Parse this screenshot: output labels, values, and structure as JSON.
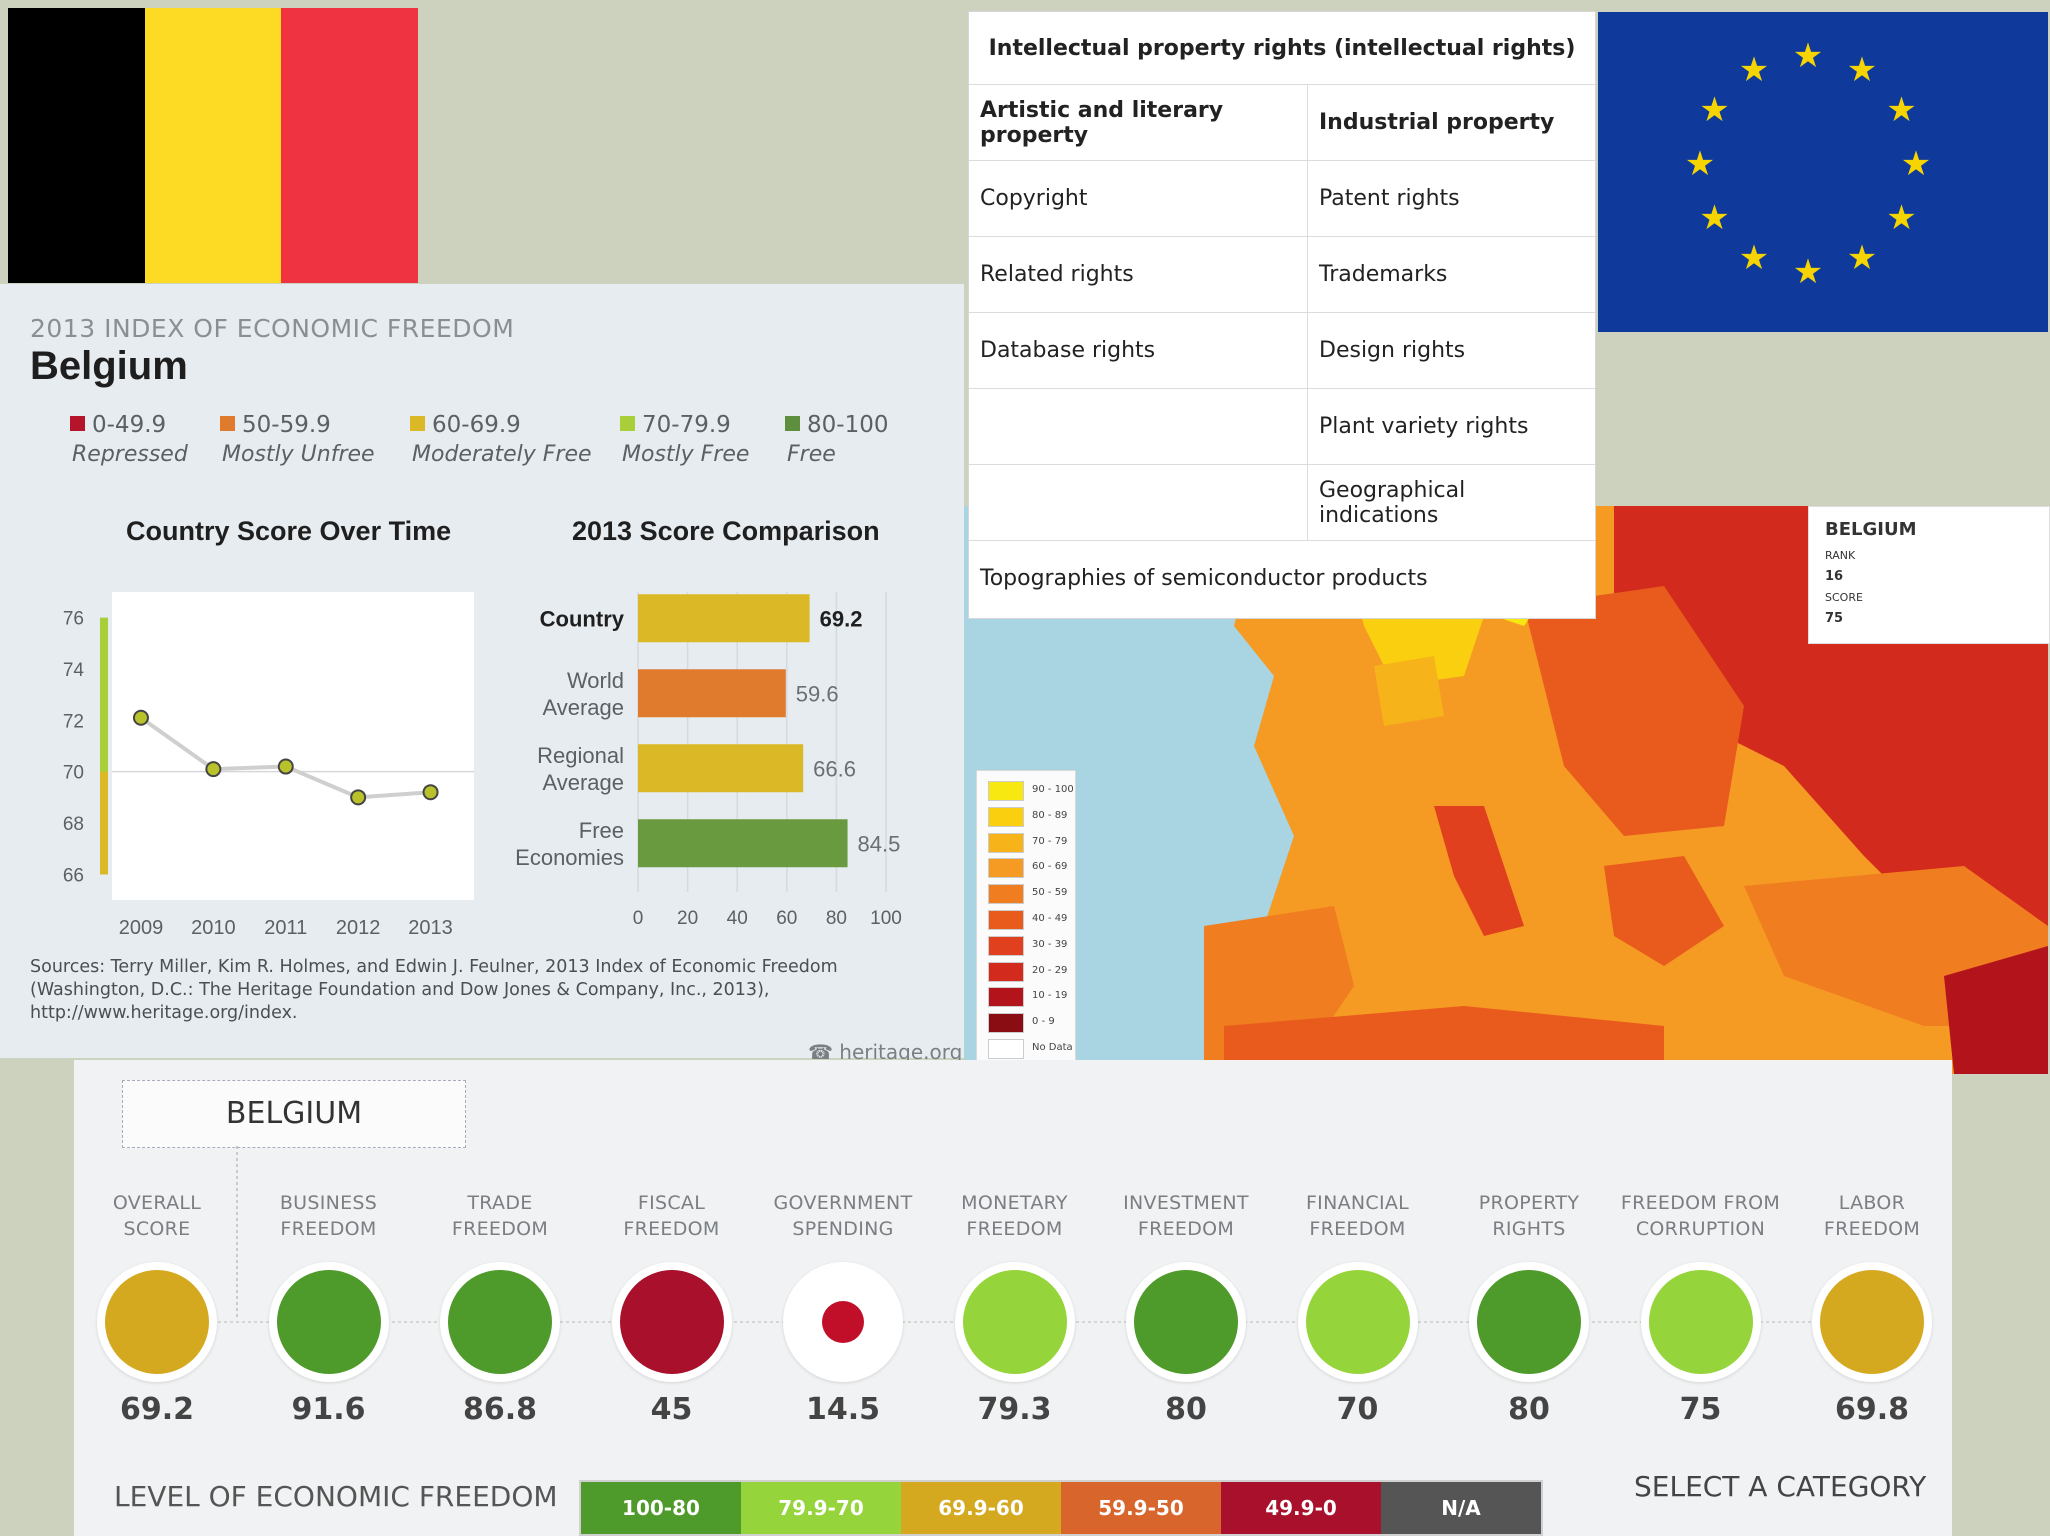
{
  "flags": {
    "belgium_colors": [
      "#000000",
      "#FDDA24",
      "#EF3340"
    ],
    "eu_bg": "#0f3a9b",
    "eu_star": "#f5d400"
  },
  "infographic": {
    "index_title": "2013 INDEX OF ECONOMIC FREEDOM",
    "country": "Belgium",
    "legend": [
      {
        "range": "0-49.9",
        "label": "Repressed",
        "color": "#b5152b"
      },
      {
        "range": "50-59.9",
        "label": "Mostly Unfree",
        "color": "#e07b2e"
      },
      {
        "range": "60-69.9",
        "label": "Moderately Free",
        "color": "#dbb826"
      },
      {
        "range": "70-79.9",
        "label": "Mostly Free",
        "color": "#a8cf3a"
      },
      {
        "range": "80-100",
        "label": "Free",
        "color": "#5e8f3e"
      }
    ],
    "sources": "Sources: Terry Miller, Kim R. Holmes, and Edwin J. Feulner, 2013 Index of Economic Freedom (Washington, D.C.: The Heritage Foundation and Dow Jones & Company, Inc., 2013), http://www.heritage.org/index.",
    "watermark": "heritage.org"
  },
  "chart_data": [
    {
      "type": "line",
      "title": "Country Score Over Time",
      "x": [
        "2009",
        "2010",
        "2011",
        "2012",
        "2013"
      ],
      "values": [
        72.1,
        70.1,
        70.2,
        69.0,
        69.2
      ],
      "ylim": [
        65,
        77
      ],
      "yticks": [
        76,
        74,
        72,
        70,
        68,
        66
      ]
    },
    {
      "type": "bar",
      "title": "2013 Score Comparison",
      "categories": [
        "Country",
        "World Average",
        "Regional Average",
        "Free Economies"
      ],
      "values": [
        69.2,
        59.6,
        66.6,
        84.5
      ],
      "value_labels": [
        "69.2",
        "59.6",
        "66.6",
        "84.5"
      ],
      "colors": [
        "#dbb826",
        "#e07b2e",
        "#dbb826",
        "#6a9a3f"
      ],
      "xlim": [
        0,
        100
      ],
      "xticks": [
        0,
        20,
        40,
        60,
        80,
        100
      ]
    }
  ],
  "ip_table": {
    "title": "Intellectual property rights (intellectual rights)",
    "col1_header": "Artistic and literary property",
    "col2_header": "Industrial property",
    "rows": [
      [
        "Copyright",
        "Patent rights"
      ],
      [
        "Related rights",
        "Trademarks"
      ],
      [
        "Database rights",
        "Design rights"
      ],
      [
        "",
        "Plant variety rights"
      ],
      [
        "",
        "Geographical indications"
      ],
      [
        "Topographies of semiconductor products",
        ""
      ]
    ]
  },
  "europe_map": {
    "popup_title": "BELGIUM",
    "popup_rank_label": "RANK",
    "popup_rank": "16",
    "popup_score_label": "SCORE",
    "popup_score": "75",
    "legend": [
      {
        "label": "90 - 100",
        "color": "#f7e811"
      },
      {
        "label": "80 - 89",
        "color": "#f9cf10"
      },
      {
        "label": "70 - 79",
        "color": "#f7b41a"
      },
      {
        "label": "60 - 69",
        "color": "#f59a23"
      },
      {
        "label": "50 - 59",
        "color": "#f07d20"
      },
      {
        "label": "40 - 49",
        "color": "#e85b1c"
      },
      {
        "label": "30 - 39",
        "color": "#e0401d"
      },
      {
        "label": "20 - 29",
        "color": "#d22a1d"
      },
      {
        "label": "10 - 19",
        "color": "#b3141b"
      },
      {
        "label": "0 - 9",
        "color": "#8a0d14"
      },
      {
        "label": "No Data",
        "color": "#ffffff"
      }
    ]
  },
  "freedom_strip": {
    "country": "BELGIUM",
    "categories": [
      {
        "name1": "OVERALL",
        "name2": "SCORE",
        "score": "69.2",
        "color": "#d4a920",
        "full": true
      },
      {
        "name1": "BUSINESS",
        "name2": "FREEDOM",
        "score": "91.6",
        "color": "#4e9a2a",
        "full": true
      },
      {
        "name1": "TRADE",
        "name2": "FREEDOM",
        "score": "86.8",
        "color": "#4e9a2a",
        "full": true
      },
      {
        "name1": "FISCAL",
        "name2": "FREEDOM",
        "score": "45",
        "color": "#a8102c",
        "full": true
      },
      {
        "name1": "GOVERNMENT",
        "name2": "SPENDING",
        "score": "14.5",
        "color": "#c10f2a",
        "full": false
      },
      {
        "name1": "MONETARY",
        "name2": "FREEDOM",
        "score": "79.3",
        "color": "#95d43a",
        "full": true
      },
      {
        "name1": "INVESTMENT",
        "name2": "FREEDOM",
        "score": "80",
        "color": "#4e9a2a",
        "full": true
      },
      {
        "name1": "FINANCIAL",
        "name2": "FREEDOM",
        "score": "70",
        "color": "#95d43a",
        "full": true
      },
      {
        "name1": "PROPERTY",
        "name2": "RIGHTS",
        "score": "80",
        "color": "#4e9a2a",
        "full": true
      },
      {
        "name1": "FREEDOM FROM",
        "name2": "CORRUPTION",
        "score": "75",
        "color": "#95d43a",
        "full": true
      },
      {
        "name1": "LABOR",
        "name2": "FREEDOM",
        "score": "69.8",
        "color": "#d4a920",
        "full": true
      }
    ],
    "level_label": "LEVEL OF ECONOMIC FREEDOM",
    "levels": [
      {
        "label": "100-80",
        "color": "#4e9a2a"
      },
      {
        "label": "79.9-70",
        "color": "#95d43a"
      },
      {
        "label": "69.9-60",
        "color": "#d4a920"
      },
      {
        "label": "59.9-50",
        "color": "#d8662c"
      },
      {
        "label": "49.9-0",
        "color": "#a8102c"
      },
      {
        "label": "N/A",
        "color": "#555555"
      }
    ],
    "select_label": "SELECT A CATEGORY"
  }
}
